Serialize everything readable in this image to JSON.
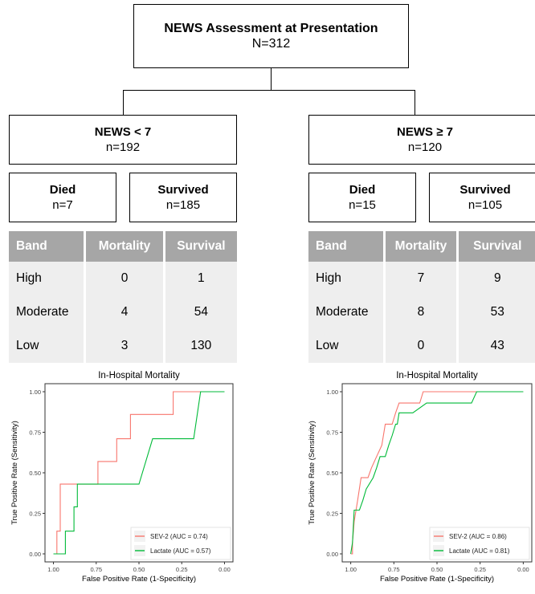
{
  "top": {
    "title": "NEWS Assessment at Presentation",
    "n": "N=312"
  },
  "groups": [
    {
      "title": "NEWS < 7",
      "n": "n=192",
      "died": {
        "label": "Died",
        "n": "n=7"
      },
      "survived": {
        "label": "Survived",
        "n": "n=185"
      },
      "table": {
        "headers": [
          "Band",
          "Mortality",
          "Survival"
        ],
        "rows": [
          [
            "High",
            "0",
            "1"
          ],
          [
            "Moderate",
            "4",
            "54"
          ],
          [
            "Low",
            "3",
            "130"
          ]
        ]
      }
    },
    {
      "title": "NEWS ≥ 7",
      "n": "n=120",
      "died": {
        "label": "Died",
        "n": "n=15"
      },
      "survived": {
        "label": "Survived",
        "n": "n=105"
      },
      "table": {
        "headers": [
          "Band",
          "Mortality",
          "Survival"
        ],
        "rows": [
          [
            "High",
            "7",
            "9"
          ],
          [
            "Moderate",
            "8",
            "53"
          ],
          [
            "Low",
            "0",
            "43"
          ]
        ]
      }
    }
  ],
  "chart_data": [
    {
      "type": "line",
      "title": "In-Hospital Mortality",
      "xlabel": "False Positive Rate (1-Specificity)",
      "ylabel": "True Positive Rate (Sensitivity)",
      "x_reversed": true,
      "xlim": [
        0,
        1
      ],
      "ylim": [
        0,
        1
      ],
      "xticks": [
        "1.00",
        "0.75",
        "0.50",
        "0.25",
        "0.00"
      ],
      "yticks": [
        "0.00",
        "0.25",
        "0.50",
        "0.75",
        "1.00"
      ],
      "legend_position": "bottom-right",
      "series": [
        {
          "name": "SEV-2 (AUC = 0.74)",
          "color": "#f8766d",
          "points": [
            [
              1,
              0
            ],
            [
              0.98,
              0
            ],
            [
              0.98,
              0.14
            ],
            [
              0.96,
              0.14
            ],
            [
              0.96,
              0.43
            ],
            [
              0.74,
              0.43
            ],
            [
              0.74,
              0.57
            ],
            [
              0.63,
              0.57
            ],
            [
              0.63,
              0.71
            ],
            [
              0.55,
              0.71
            ],
            [
              0.55,
              0.86
            ],
            [
              0.3,
              0.86
            ],
            [
              0.3,
              1
            ],
            [
              0,
              1
            ]
          ]
        },
        {
          "name": "Lactate (AUC = 0.57)",
          "color": "#00ba38",
          "points": [
            [
              1,
              0
            ],
            [
              0.93,
              0
            ],
            [
              0.93,
              0.14
            ],
            [
              0.88,
              0.14
            ],
            [
              0.88,
              0.29
            ],
            [
              0.86,
              0.29
            ],
            [
              0.86,
              0.43
            ],
            [
              0.5,
              0.43
            ],
            [
              0.42,
              0.71
            ],
            [
              0.18,
              0.71
            ],
            [
              0.14,
              1
            ],
            [
              0,
              1
            ]
          ]
        }
      ]
    },
    {
      "type": "line",
      "title": "In-Hospital Mortality",
      "xlabel": "False Positive Rate (1-Specificity)",
      "ylabel": "True Positive Rate (Sensitivity)",
      "x_reversed": true,
      "xlim": [
        0,
        1
      ],
      "ylim": [
        0,
        1
      ],
      "xticks": [
        "1.00",
        "0.75",
        "0.50",
        "0.25",
        "0.00"
      ],
      "yticks": [
        "0.00",
        "0.25",
        "0.50",
        "0.75",
        "1.00"
      ],
      "legend_position": "bottom-right",
      "series": [
        {
          "name": "SEV-2 (AUC = 0.86)",
          "color": "#f8766d",
          "points": [
            [
              1,
              0
            ],
            [
              0.99,
              0
            ],
            [
              0.99,
              0.07
            ],
            [
              0.98,
              0.2
            ],
            [
              0.96,
              0.33
            ],
            [
              0.94,
              0.47
            ],
            [
              0.9,
              0.47
            ],
            [
              0.88,
              0.53
            ],
            [
              0.85,
              0.6
            ],
            [
              0.82,
              0.67
            ],
            [
              0.8,
              0.8
            ],
            [
              0.76,
              0.8
            ],
            [
              0.74,
              0.87
            ],
            [
              0.72,
              0.93
            ],
            [
              0.6,
              0.93
            ],
            [
              0.58,
              1
            ],
            [
              0,
              1
            ]
          ]
        },
        {
          "name": "Lactate (AUC = 0.81)",
          "color": "#00ba38",
          "points": [
            [
              1,
              0
            ],
            [
              0.99,
              0.07
            ],
            [
              0.98,
              0.27
            ],
            [
              0.95,
              0.27
            ],
            [
              0.93,
              0.33
            ],
            [
              0.91,
              0.4
            ],
            [
              0.87,
              0.47
            ],
            [
              0.85,
              0.53
            ],
            [
              0.83,
              0.6
            ],
            [
              0.8,
              0.6
            ],
            [
              0.78,
              0.67
            ],
            [
              0.76,
              0.73
            ],
            [
              0.74,
              0.8
            ],
            [
              0.73,
              0.8
            ],
            [
              0.72,
              0.87
            ],
            [
              0.64,
              0.87
            ],
            [
              0.56,
              0.93
            ],
            [
              0.3,
              0.93
            ],
            [
              0.27,
              1
            ],
            [
              0,
              1
            ]
          ]
        }
      ]
    }
  ]
}
